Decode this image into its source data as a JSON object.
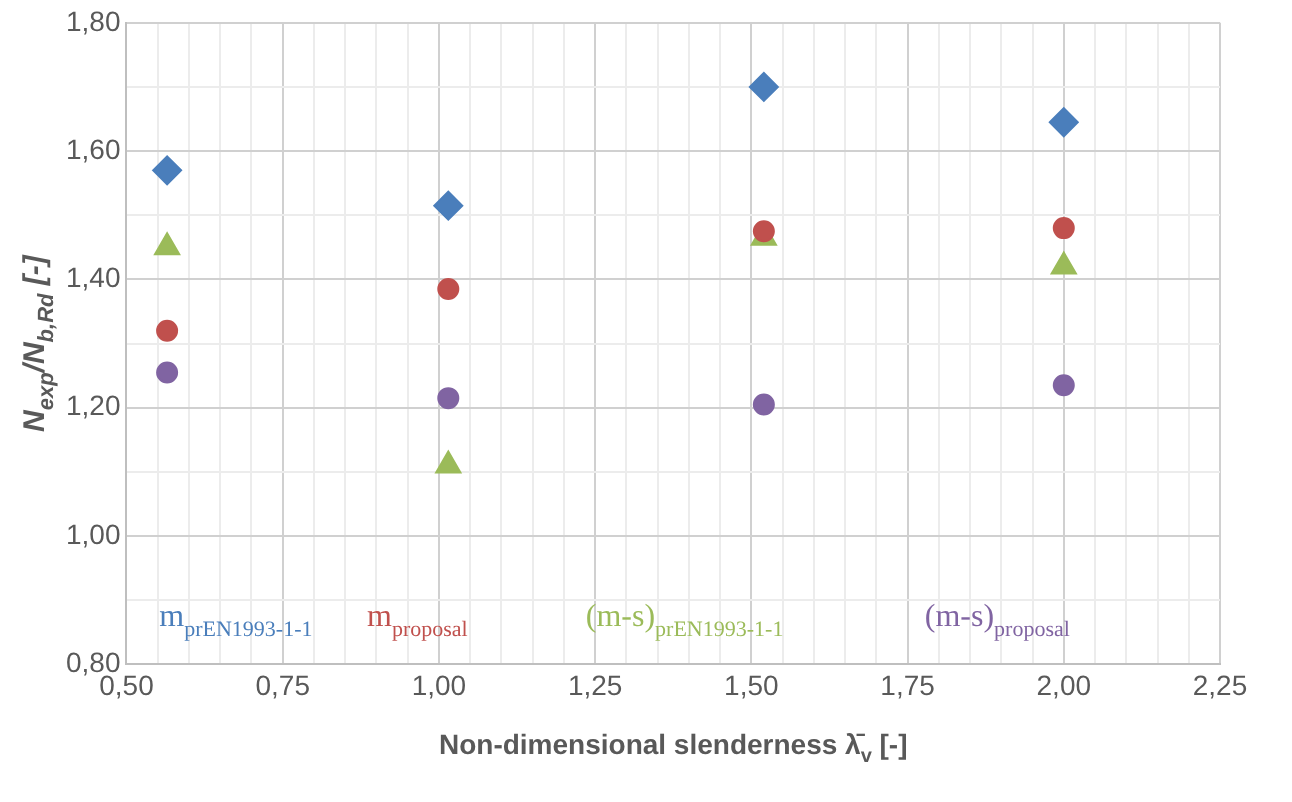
{
  "chart_data": {
    "type": "scatter",
    "xlabel": "Non-dimensional slenderness λ̄$_{v}$ [-]",
    "ylabel": "N$_{exp}$/N$_{b,Rd}$ [-]",
    "x": [
      0.565,
      1.015,
      1.52,
      2.0
    ],
    "series": [
      {
        "name": "m$_{prEN1993-1-1}$",
        "color": "#4a7ebb",
        "marker": "diamond",
        "values": [
          1.57,
          1.515,
          1.7,
          1.645
        ]
      },
      {
        "name": "m$_{proposal}$",
        "color": "#c0504d",
        "marker": "circle",
        "values": [
          1.32,
          1.385,
          1.475,
          1.48
        ]
      },
      {
        "name": "(m-s)$_{prEN1993-1-1}$",
        "color": "#9bbb59",
        "marker": "triangle",
        "values": [
          1.45,
          1.11,
          1.465,
          1.42
        ]
      },
      {
        "name": "(m-s)$_{proposal}$",
        "color": "#8064a2",
        "marker": "circle",
        "values": [
          1.255,
          1.215,
          1.205,
          1.235
        ]
      }
    ],
    "xlim": [
      0.5,
      2.25
    ],
    "xticks": [
      {
        "value": 0.5,
        "label": "0,50"
      },
      {
        "value": 0.55,
        "label": null
      },
      {
        "value": 0.6,
        "label": null
      },
      {
        "value": 0.65,
        "label": null
      },
      {
        "value": 0.7,
        "label": null
      },
      {
        "value": 0.75,
        "label": "0,75"
      },
      {
        "value": 0.8,
        "label": null
      },
      {
        "value": 0.85,
        "label": null
      },
      {
        "value": 0.9,
        "label": null
      },
      {
        "value": 0.95,
        "label": null
      },
      {
        "value": 1.0,
        "label": "1,00"
      },
      {
        "value": 1.05,
        "label": null
      },
      {
        "value": 1.1,
        "label": null
      },
      {
        "value": 1.15,
        "label": null
      },
      {
        "value": 1.2,
        "label": null
      },
      {
        "value": 1.25,
        "label": "1,25"
      },
      {
        "value": 1.3,
        "label": null
      },
      {
        "value": 1.35,
        "label": null
      },
      {
        "value": 1.4,
        "label": null
      },
      {
        "value": 1.45,
        "label": null
      },
      {
        "value": 1.5,
        "label": "1,50"
      },
      {
        "value": 1.55,
        "label": null
      },
      {
        "value": 1.6,
        "label": null
      },
      {
        "value": 1.65,
        "label": null
      },
      {
        "value": 1.7,
        "label": null
      },
      {
        "value": 1.75,
        "label": "1,75"
      },
      {
        "value": 1.8,
        "label": null
      },
      {
        "value": 1.85,
        "label": null
      },
      {
        "value": 1.9,
        "label": null
      },
      {
        "value": 1.95,
        "label": null
      },
      {
        "value": 2.0,
        "label": "2,00"
      },
      {
        "value": 2.05,
        "label": null
      },
      {
        "value": 2.1,
        "label": null
      },
      {
        "value": 2.15,
        "label": null
      },
      {
        "value": 2.2,
        "label": null
      },
      {
        "value": 2.25,
        "label": "2,25"
      }
    ],
    "ylim": [
      0.8,
      1.8
    ],
    "yticks": [
      {
        "value": 0.8,
        "label": "0,80"
      },
      {
        "value": 0.9,
        "label": null
      },
      {
        "value": 1.0,
        "label": "1,00"
      },
      {
        "value": 1.1,
        "label": null
      },
      {
        "value": 1.2,
        "label": "1,20"
      },
      {
        "value": 1.3,
        "label": null
      },
      {
        "value": 1.4,
        "label": "1,40"
      },
      {
        "value": 1.5,
        "label": null
      },
      {
        "value": 1.6,
        "label": "1,60"
      },
      {
        "value": 1.7,
        "label": null
      },
      {
        "value": 1.8,
        "label": "1,80"
      }
    ],
    "grid": true,
    "legend": "bottom"
  }
}
